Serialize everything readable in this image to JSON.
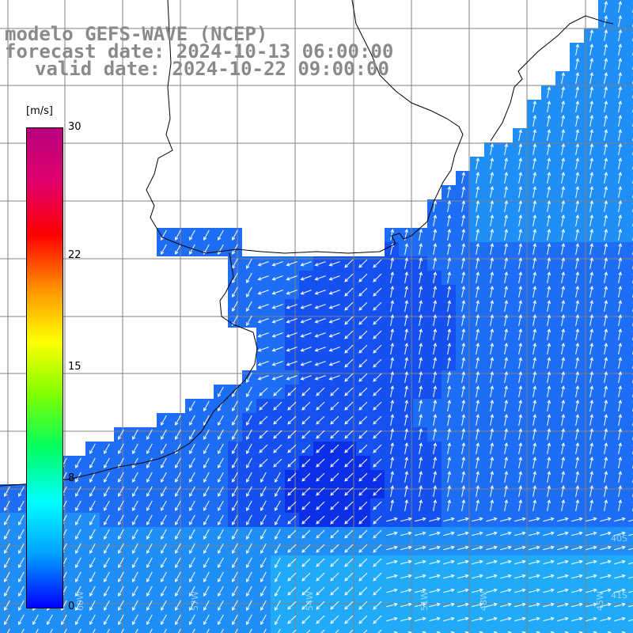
{
  "header": {
    "line1": "modelo GEFS-WAVE (NCEP)",
    "line2": "forecast date: 2024-10-13 06:00:00",
    "line3": "valid date: 2024-10-22 09:00:00"
  },
  "colorbar": {
    "unit": "[m/s]",
    "min": 0,
    "max": 30,
    "ticks": [
      "30",
      "22",
      "15",
      "8",
      "0"
    ],
    "tick_values": [
      30,
      22,
      15,
      8,
      0
    ],
    "colors": [
      "#0000ff",
      "#00a0ff",
      "#00ffff",
      "#00ff60",
      "#80ff00",
      "#ffff00",
      "#ff9000",
      "#ff0000",
      "#e0006e",
      "#b8007c"
    ]
  },
  "map": {
    "field": "wind speed with direction arrows",
    "ocean_shades": [
      "#0a2fe6",
      "#1550f0",
      "#1e6ef5",
      "#1f8ef7",
      "#20aaf8"
    ],
    "land_color": "#ffffff",
    "grid_color": "#808080",
    "coast_color": "#000000",
    "lon_labels": [
      "60W",
      "57W",
      "54W",
      "51W",
      "48W",
      "45W"
    ],
    "lat_labels": [
      "40S",
      "41S"
    ]
  }
}
